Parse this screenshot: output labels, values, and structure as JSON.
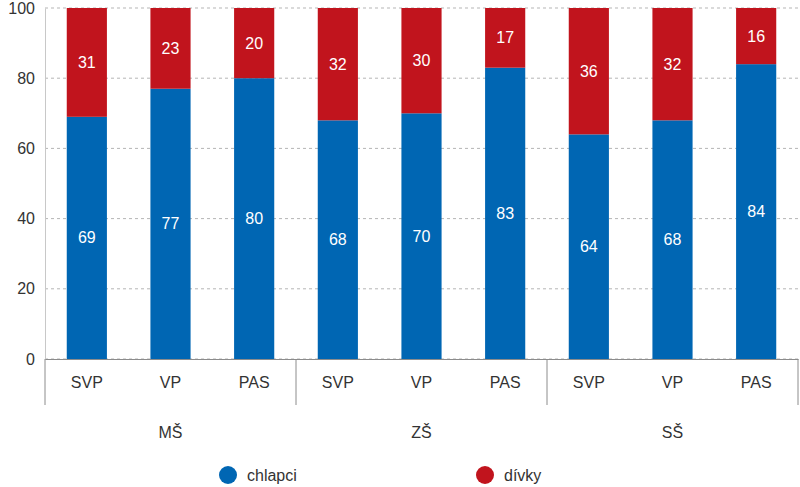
{
  "chart_data": {
    "type": "bar",
    "stacked": true,
    "data_labels": true,
    "grid": true,
    "categories": [
      "SVP",
      "VP",
      "PAS",
      "SVP",
      "VP",
      "PAS",
      "SVP",
      "VP",
      "PAS"
    ],
    "groups": [
      "MŠ",
      "ZŠ",
      "SŠ"
    ],
    "series": [
      {
        "name": "chlapci",
        "color": "#0066b3",
        "values": [
          69,
          77,
          80,
          68,
          70,
          83,
          64,
          68,
          84
        ]
      },
      {
        "name": "dívky",
        "color": "#c1141d",
        "values": [
          31,
          23,
          20,
          32,
          30,
          17,
          36,
          32,
          16
        ]
      }
    ],
    "ylim": [
      0,
      100
    ],
    "yticks": [
      0,
      20,
      40,
      60,
      80,
      100
    ]
  }
}
